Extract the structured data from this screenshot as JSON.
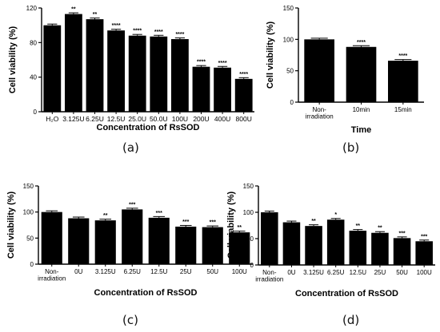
{
  "figure": {
    "panel_labels": [
      "(a)",
      "(b)",
      "(c)",
      "(d)"
    ]
  },
  "chart_data": [
    {
      "panel": "(a)",
      "type": "bar",
      "ylabel": "Cell viability (%)",
      "xlabel": "Concentration of RsSOD",
      "ylim": [
        0,
        120
      ],
      "yticks": [
        "0",
        "40",
        "80",
        "120"
      ],
      "bar_color": "#000000",
      "categories": [
        "H₂O",
        "3.125U",
        "6.25U",
        "12.5U",
        "25.0U",
        "50.0U",
        "100U",
        "200U",
        "400U",
        "800U"
      ],
      "values": [
        100,
        113,
        107,
        94,
        88,
        87,
        84,
        52,
        51,
        38
      ],
      "significance": [
        "",
        "**",
        "**",
        "****",
        "****",
        "****",
        "****",
        "****",
        "****",
        "****"
      ]
    },
    {
      "panel": "(b)",
      "type": "bar",
      "ylabel": "Cell viability (%)",
      "xlabel": "Time",
      "ylim": [
        0,
        150
      ],
      "yticks": [
        "0",
        "50",
        "100",
        "150"
      ],
      "bar_color": "#000000",
      "categories": [
        "Non-\nirradiation",
        "10min",
        "15min"
      ],
      "values": [
        100,
        88,
        66
      ],
      "significance": [
        "",
        "****",
        "****"
      ]
    },
    {
      "panel": "(c)",
      "type": "bar",
      "ylabel": "Cell viability (%)",
      "xlabel": "Concentration of RsSOD",
      "ylim": [
        0,
        150
      ],
      "yticks": [
        "0",
        "50",
        "100",
        "150"
      ],
      "bar_color": "#000000",
      "categories": [
        "Non-\nirradiation",
        "0U",
        "3.125U",
        "6.25U",
        "12.5U",
        "25U",
        "50U",
        "100U"
      ],
      "values": [
        100,
        88,
        84,
        105,
        89,
        72,
        71,
        61
      ],
      "significance": [
        "",
        "",
        "**",
        "***",
        "***",
        "***",
        "***",
        "**"
      ]
    },
    {
      "panel": "(d)",
      "type": "bar",
      "ylabel": "Cell viability (%)",
      "xlabel": "Concentration of RsSOD",
      "ylim": [
        0,
        150
      ],
      "yticks": [
        "0",
        "50",
        "100",
        "150"
      ],
      "bar_color": "#000000",
      "categories": [
        "Non-\nirradiation",
        "0U",
        "3.125U",
        "6.25U",
        "12.5U",
        "25U",
        "50U",
        "100U"
      ],
      "values": [
        100,
        81,
        74,
        86,
        65,
        61,
        51,
        45
      ],
      "significance": [
        "",
        "",
        "**",
        "*",
        "**",
        "**",
        "***",
        "***"
      ]
    }
  ]
}
